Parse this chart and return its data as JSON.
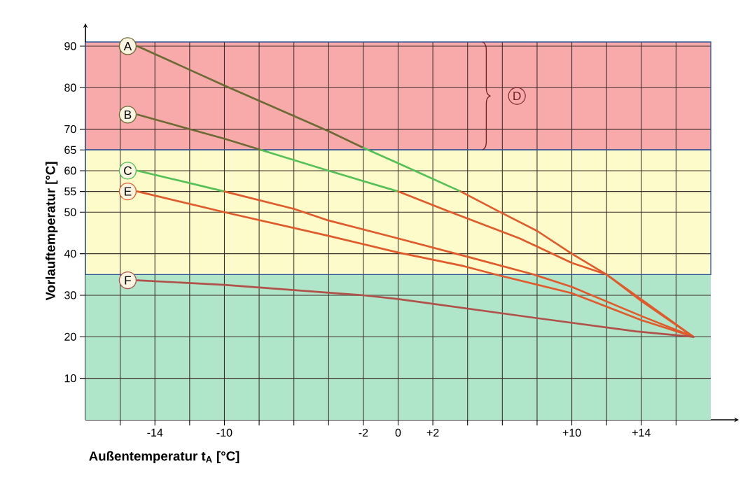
{
  "chart_data": {
    "type": "line",
    "xlabel": "Außentemperatur t$_{A}$ [°C]",
    "ylabel": "Vorlauftemperatur [°C]",
    "xlim": [
      -18,
      18
    ],
    "ylim": [
      0,
      91
    ],
    "xticks": [
      {
        "value": -16,
        "label": null
      },
      -14,
      {
        "value": -12,
        "label": null
      },
      -10,
      {
        "value": -8,
        "label": null
      },
      {
        "value": -6,
        "label": null
      },
      {
        "value": -4,
        "label": null
      },
      -2,
      0,
      {
        "value": 2,
        "label": "+2"
      },
      {
        "value": 4,
        "label": null
      },
      {
        "value": 6,
        "label": null
      },
      {
        "value": 8,
        "label": null
      },
      {
        "value": 10,
        "label": "+10"
      },
      {
        "value": 12,
        "label": null
      },
      {
        "value": 14,
        "label": "+14"
      },
      {
        "value": 16,
        "label": null
      }
    ],
    "yticks": [
      10,
      20,
      30,
      40,
      50,
      55,
      60,
      65,
      70,
      80,
      90
    ],
    "grid": true,
    "legend": "left",
    "marker": "none",
    "line_style": "solid",
    "bands": [
      {
        "axis": "y",
        "from": 65,
        "to": 91,
        "color": "#f8aaaa",
        "label": "D"
      },
      {
        "axis": "y",
        "from": 35,
        "to": 65,
        "color": "#fdfbc9"
      },
      {
        "axis": "y",
        "from": 0,
        "to": 35,
        "color": "#afe5c8"
      }
    ],
    "series": [
      {
        "name": "A",
        "color": "#6e6a35",
        "x": [
          -15,
          -10,
          -4,
          -2
        ],
        "values": [
          90,
          80.5,
          69.5,
          65.5
        ]
      },
      {
        "color": "#55c055",
        "x": [
          -2,
          0,
          3.6
        ],
        "values": [
          65.5,
          61.8,
          55
        ]
      },
      {
        "color": "#e05a2b",
        "x": [
          3.6,
          5.7,
          8,
          10,
          12,
          14,
          17
        ],
        "values": [
          55,
          50.4,
          45.5,
          40,
          35,
          28.6,
          20
        ]
      },
      {
        "name": "B",
        "color": "#6e6a35",
        "x": [
          -15,
          -10,
          -7.9
        ],
        "values": [
          73.5,
          67.7,
          65
        ]
      },
      {
        "color": "#55c055",
        "x": [
          -7.9,
          -4,
          0
        ],
        "values": [
          65,
          60,
          55
        ]
      },
      {
        "color": "#e05a2b",
        "x": [
          0,
          2.8,
          7,
          10,
          12,
          14,
          17
        ],
        "values": [
          55,
          50.4,
          43.7,
          37.8,
          35,
          29,
          20
        ]
      },
      {
        "name": "C",
        "color": "#55c055",
        "x": [
          -15,
          -10
        ],
        "values": [
          60,
          55
        ]
      },
      {
        "color": "#e05a2b",
        "x": [
          -10,
          -6,
          -4,
          0,
          3.8,
          7.8,
          10,
          14,
          17
        ],
        "values": [
          55,
          50.8,
          48,
          43.7,
          39.5,
          35,
          32,
          25,
          20
        ]
      },
      {
        "name": "E",
        "color": "#e05a2b",
        "x": [
          -15,
          -10,
          -4,
          0,
          3.8,
          5.6,
          10,
          14,
          17
        ],
        "values": [
          55,
          50,
          44.3,
          40.3,
          37,
          35,
          30.5,
          24,
          20
        ]
      },
      {
        "name": "F",
        "color": "#b0524a",
        "x": [
          -15,
          -10,
          -2,
          0,
          7.8,
          13.7,
          17
        ],
        "values": [
          33.6,
          32.5,
          30,
          29.1,
          24.6,
          21.3,
          20
        ]
      }
    ]
  }
}
